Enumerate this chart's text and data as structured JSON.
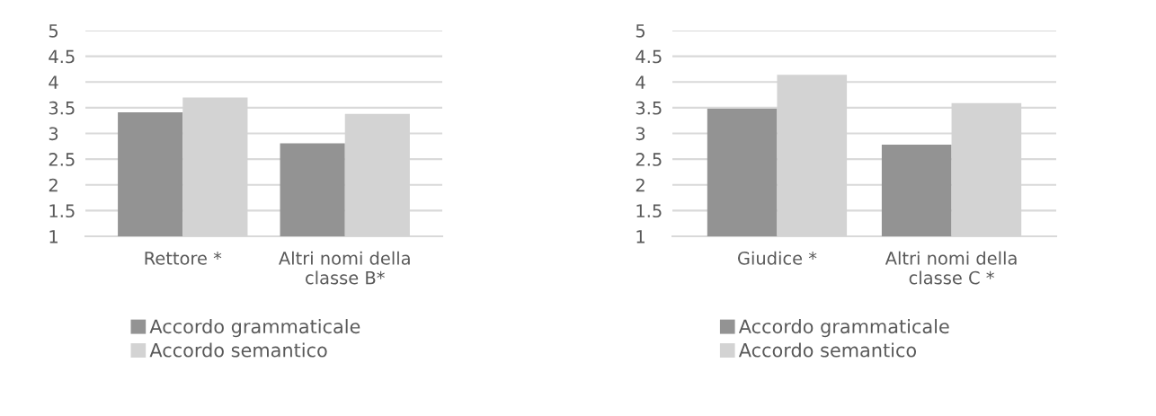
{
  "chart_data": [
    {
      "type": "bar",
      "categories": [
        "Rettore *",
        "Altri nomi della\nclasse B*"
      ],
      "series": [
        {
          "name": "Accordo grammaticale",
          "color": "#939393",
          "values": [
            3.41,
            2.81
          ]
        },
        {
          "name": "Accordo semantico",
          "color": "#d3d3d3",
          "values": [
            3.7,
            3.38
          ]
        }
      ],
      "ylim": [
        1,
        5
      ],
      "yticks": [
        1,
        1.5,
        2,
        2.5,
        3,
        3.5,
        4,
        4.5,
        5
      ],
      "grid": "y",
      "legend": "bottom"
    },
    {
      "type": "bar",
      "categories": [
        "Giudice *",
        "Altri nomi della\nclasse C *"
      ],
      "series": [
        {
          "name": "Accordo grammaticale",
          "color": "#939393",
          "values": [
            3.48,
            2.78
          ]
        },
        {
          "name": "Accordo semantico",
          "color": "#d3d3d3",
          "values": [
            4.14,
            3.59
          ]
        }
      ],
      "ylim": [
        1,
        5
      ],
      "yticks": [
        1,
        1.5,
        2,
        2.5,
        3,
        3.5,
        4,
        4.5,
        5
      ],
      "grid": "y",
      "legend": "bottom"
    }
  ]
}
